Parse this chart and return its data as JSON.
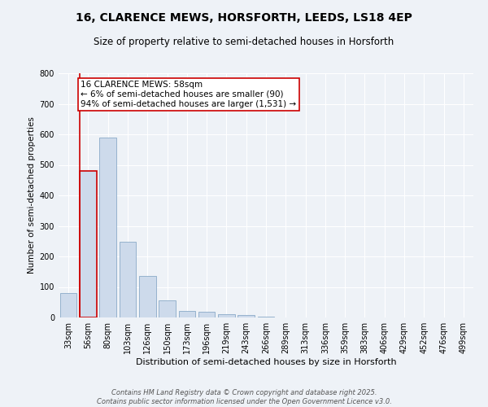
{
  "title": "16, CLARENCE MEWS, HORSFORTH, LEEDS, LS18 4EP",
  "subtitle": "Size of property relative to semi-detached houses in Horsforth",
  "xlabel": "Distribution of semi-detached houses by size in Horsforth",
  "ylabel": "Number of semi-detached properties",
  "categories": [
    "33sqm",
    "56sqm",
    "80sqm",
    "103sqm",
    "126sqm",
    "150sqm",
    "173sqm",
    "196sqm",
    "219sqm",
    "243sqm",
    "266sqm",
    "289sqm",
    "313sqm",
    "336sqm",
    "359sqm",
    "383sqm",
    "406sqm",
    "429sqm",
    "452sqm",
    "476sqm",
    "499sqm"
  ],
  "values": [
    80,
    480,
    590,
    248,
    135,
    55,
    22,
    18,
    12,
    7,
    2,
    1,
    0,
    0,
    0,
    0,
    0,
    0,
    0,
    0,
    0
  ],
  "bar_color": "#cddaeb",
  "bar_edge_color": "#8aaac8",
  "highlight_bar_index": 1,
  "highlight_edge_color": "#cc0000",
  "annotation_text": "16 CLARENCE MEWS: 58sqm\n← 6% of semi-detached houses are smaller (90)\n94% of semi-detached houses are larger (1,531) →",
  "annotation_box_color": "white",
  "annotation_box_edge_color": "#cc0000",
  "vertical_line_color": "#cc0000",
  "ylim": [
    0,
    800
  ],
  "yticks": [
    0,
    100,
    200,
    300,
    400,
    500,
    600,
    700,
    800
  ],
  "background_color": "#eef2f7",
  "grid_color": "white",
  "footer_text": "Contains HM Land Registry data © Crown copyright and database right 2025.\nContains public sector information licensed under the Open Government Licence v3.0.",
  "title_fontsize": 10,
  "subtitle_fontsize": 8.5,
  "xlabel_fontsize": 8,
  "ylabel_fontsize": 7.5,
  "annotation_fontsize": 7.5,
  "tick_fontsize": 7
}
